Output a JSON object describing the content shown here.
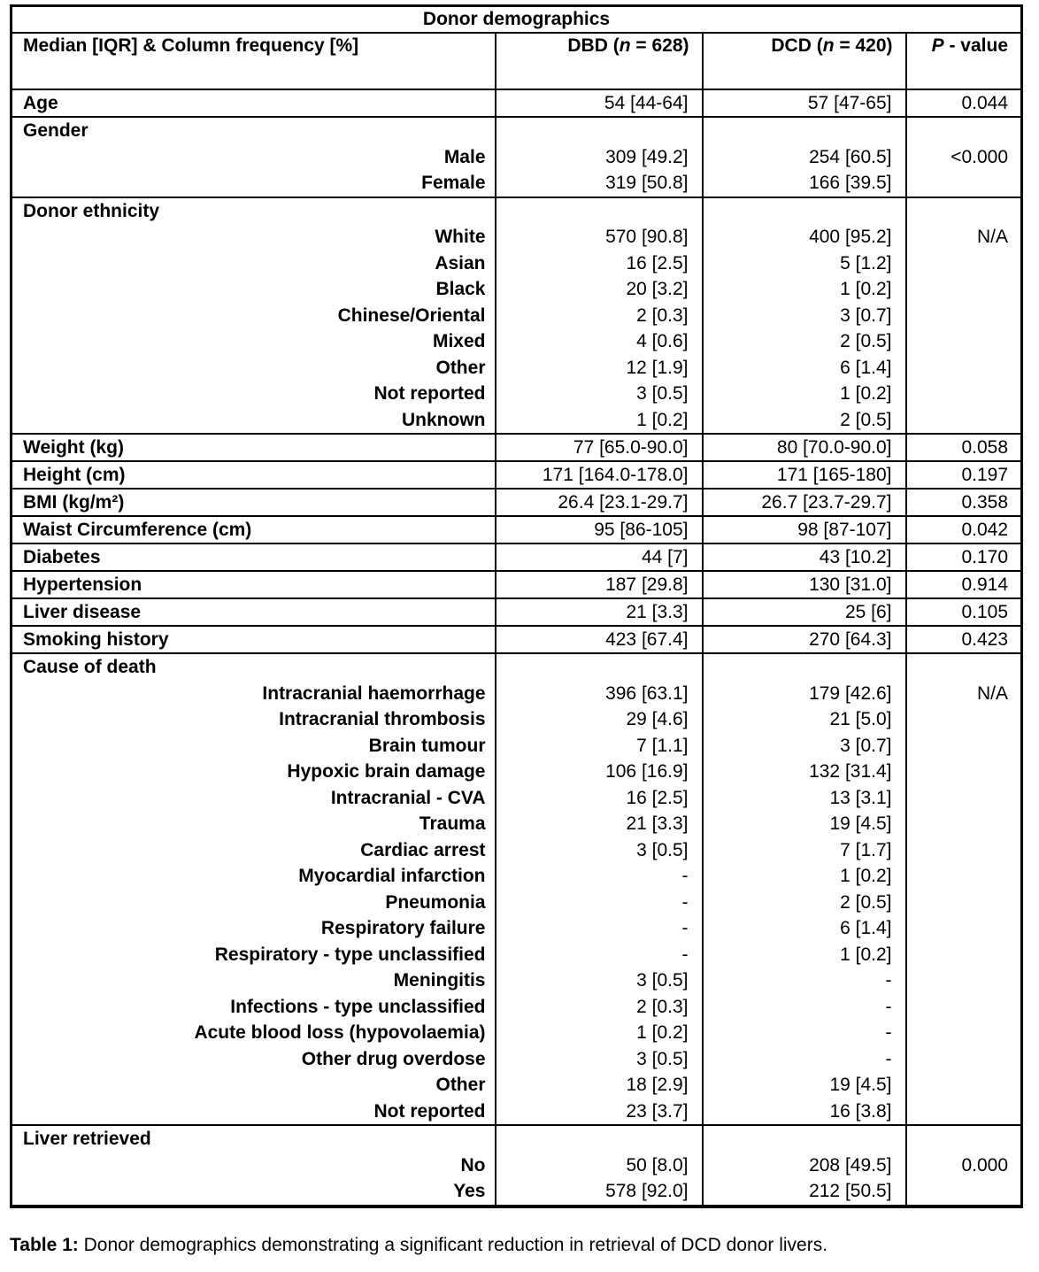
{
  "table": {
    "title": "Donor demographics",
    "header": {
      "col1": "Median [IQR] & Column frequency [%]",
      "dbd": {
        "pre": "DBD (",
        "n": "n",
        "post": " = 628)"
      },
      "dcd": {
        "pre": "DCD (",
        "n": "n",
        "post": " = 420)"
      },
      "p": {
        "italic": "P",
        "post": " - value"
      }
    },
    "rows": [
      {
        "type": "simple",
        "label": "Age",
        "dbd": "54 [44-64]",
        "dcd": "57 [47-65]",
        "p": "0.044"
      },
      {
        "type": "group",
        "label": "Gender",
        "p": "<0.000",
        "items": [
          {
            "label": "Male",
            "dbd": "309 [49.2]",
            "dcd": "254 [60.5]"
          },
          {
            "label": "Female",
            "dbd": "319 [50.8]",
            "dcd": "166 [39.5]"
          }
        ]
      },
      {
        "type": "group",
        "label": "Donor ethnicity",
        "p": "N/A",
        "items": [
          {
            "label": "White",
            "dbd": "570 [90.8]",
            "dcd": "400 [95.2]"
          },
          {
            "label": "Asian",
            "dbd": "16 [2.5]",
            "dcd": "5 [1.2]"
          },
          {
            "label": "Black",
            "dbd": "20 [3.2]",
            "dcd": "1 [0.2]"
          },
          {
            "label": "Chinese/Oriental",
            "dbd": "2 [0.3]",
            "dcd": "3 [0.7]"
          },
          {
            "label": "Mixed",
            "dbd": "4 [0.6]",
            "dcd": "2 [0.5]"
          },
          {
            "label": "Other",
            "dbd": "12 [1.9]",
            "dcd": "6 [1.4]"
          },
          {
            "label": "Not reported",
            "dbd": "3 [0.5]",
            "dcd": "1 [0.2]"
          },
          {
            "label": "Unknown",
            "dbd": "1 [0.2]",
            "dcd": "2 [0.5]"
          }
        ]
      },
      {
        "type": "simple",
        "label": "Weight (kg)",
        "dbd": "77 [65.0-90.0]",
        "dcd": "80 [70.0-90.0]",
        "p": "0.058"
      },
      {
        "type": "simple",
        "label": "Height (cm)",
        "dbd": "171 [164.0-178.0]",
        "dcd": "171 [165-180]",
        "p": "0.197"
      },
      {
        "type": "simple",
        "label": "BMI (kg/m²)",
        "dbd": "26.4 [23.1-29.7]",
        "dcd": "26.7 [23.7-29.7]",
        "p": "0.358"
      },
      {
        "type": "simple",
        "label": "Waist Circumference (cm)",
        "dbd": "95 [86-105]",
        "dcd": "98 [87-107]",
        "p": "0.042"
      },
      {
        "type": "simple",
        "label": "Diabetes",
        "dbd": "44 [7]",
        "dcd": "43 [10.2]",
        "p": "0.170"
      },
      {
        "type": "simple",
        "label": "Hypertension",
        "dbd": "187 [29.8]",
        "dcd": "130 [31.0]",
        "p": "0.914"
      },
      {
        "type": "simple",
        "label": "Liver disease",
        "dbd": "21 [3.3]",
        "dcd": "25 [6]",
        "p": "0.105"
      },
      {
        "type": "simple",
        "label": "Smoking history",
        "dbd": "423 [67.4]",
        "dcd": "270 [64.3]",
        "p": "0.423"
      },
      {
        "type": "group",
        "label": "Cause of death",
        "p": "N/A",
        "items": [
          {
            "label": "Intracranial haemorrhage",
            "dbd": "396 [63.1]",
            "dcd": "179 [42.6]"
          },
          {
            "label": "Intracranial thrombosis",
            "dbd": "29 [4.6]",
            "dcd": "21 [5.0]"
          },
          {
            "label": "Brain tumour",
            "dbd": "7 [1.1]",
            "dcd": "3 [0.7]"
          },
          {
            "label": "Hypoxic brain damage",
            "dbd": "106 [16.9]",
            "dcd": "132 [31.4]"
          },
          {
            "label": "Intracranial - CVA",
            "dbd": "16 [2.5]",
            "dcd": "13 [3.1]"
          },
          {
            "label": "Trauma",
            "dbd": "21 [3.3]",
            "dcd": "19 [4.5]"
          },
          {
            "label": "Cardiac arrest",
            "dbd": "3 [0.5]",
            "dcd": "7 [1.7]"
          },
          {
            "label": "Myocardial infarction",
            "dbd": "-",
            "dcd": "1 [0.2]"
          },
          {
            "label": "Pneumonia",
            "dbd": "-",
            "dcd": "2 [0.5]"
          },
          {
            "label": "Respiratory failure",
            "dbd": "-",
            "dcd": "6 [1.4]"
          },
          {
            "label": "Respiratory - type unclassified",
            "dbd": "-",
            "dcd": "1 [0.2]"
          },
          {
            "label": "Meningitis",
            "dbd": "3 [0.5]",
            "dcd": "-"
          },
          {
            "label": "Infections - type unclassified",
            "dbd": "2 [0.3]",
            "dcd": "-"
          },
          {
            "label": "Acute blood loss (hypovolaemia)",
            "dbd": "1 [0.2]",
            "dcd": "-"
          },
          {
            "label": "Other drug overdose",
            "dbd": "3 [0.5]",
            "dcd": "-"
          },
          {
            "label": "Other",
            "dbd": "18 [2.9]",
            "dcd": "19 [4.5]"
          },
          {
            "label": "Not reported",
            "dbd": "23 [3.7]",
            "dcd": "16 [3.8]"
          }
        ]
      },
      {
        "type": "group",
        "label": "Liver retrieved",
        "p": "0.000",
        "items": [
          {
            "label": "No",
            "dbd": "50 [8.0]",
            "dcd": "208 [49.5]"
          },
          {
            "label": "Yes",
            "dbd": "578 [92.0]",
            "dcd": "212 [50.5]"
          }
        ]
      }
    ]
  },
  "caption": {
    "label": "Table 1:",
    "text": " Donor demographics demonstrating a significant reduction in retrieval of DCD donor livers."
  }
}
